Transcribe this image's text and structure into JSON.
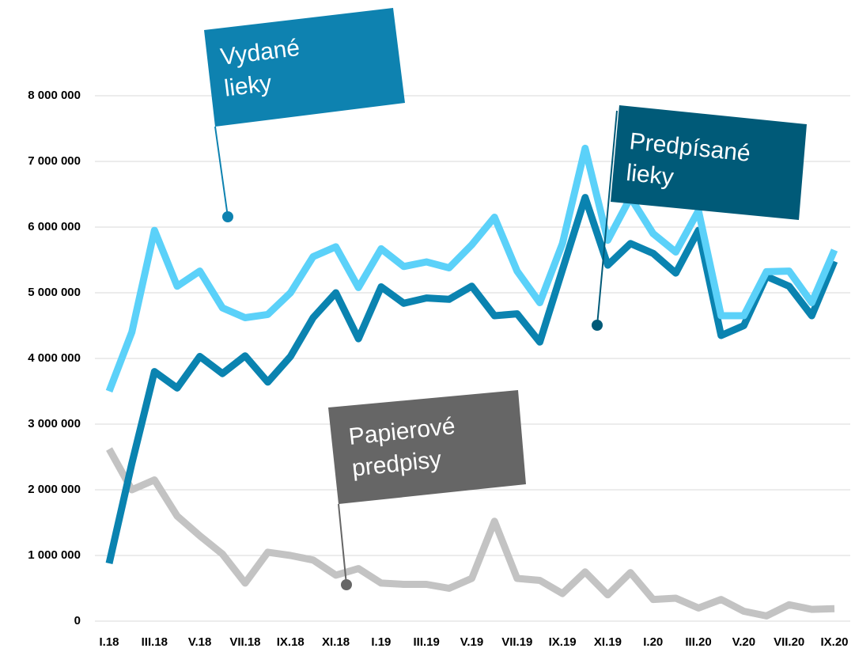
{
  "chart_data": {
    "type": "line",
    "categories": [
      "I.18",
      null,
      "III.18",
      null,
      "V.18",
      null,
      "VII.18",
      null,
      "IX.18",
      null,
      "XI.18",
      null,
      "I.19",
      null,
      "III.19",
      null,
      "V.19",
      null,
      "VII.19",
      null,
      "IX.19",
      null,
      "XI.19",
      null,
      "I.20",
      null,
      "III.20",
      null,
      "V.20",
      null,
      "VII.20",
      null,
      "IX.20"
    ],
    "series": [
      {
        "name": "Vydané lieky",
        "color": "#5bd1f9",
        "values": [
          3500000,
          4400000,
          5950000,
          5100000,
          5330000,
          4770000,
          4620000,
          4670000,
          5000000,
          5550000,
          5700000,
          5080000,
          5670000,
          5400000,
          5470000,
          5380000,
          5730000,
          6150000,
          5330000,
          4850000,
          5750000,
          7200000,
          5800000,
          6450000,
          5900000,
          5620000,
          6250000,
          4650000,
          4650000,
          5320000,
          5330000,
          4850000,
          5650000
        ]
      },
      {
        "name": "Predpísané lieky",
        "color": "#0a83b0",
        "values": [
          880000,
          2400000,
          3800000,
          3550000,
          4030000,
          3770000,
          4040000,
          3640000,
          4030000,
          4620000,
          5000000,
          4300000,
          5090000,
          4840000,
          4920000,
          4900000,
          5100000,
          4650000,
          4680000,
          4250000,
          5350000,
          6450000,
          5420000,
          5750000,
          5600000,
          5300000,
          5950000,
          4350000,
          4500000,
          5250000,
          5100000,
          4650000,
          5480000
        ]
      },
      {
        "name": "Papierové predpisy",
        "color": "#c3c3c3",
        "values": [
          2620000,
          2000000,
          2150000,
          1600000,
          1300000,
          1020000,
          580000,
          1050000,
          1000000,
          930000,
          700000,
          800000,
          580000,
          560000,
          560000,
          500000,
          650000,
          1520000,
          650000,
          620000,
          420000,
          750000,
          400000,
          740000,
          330000,
          350000,
          200000,
          330000,
          150000,
          80000,
          250000,
          180000,
          190000
        ]
      }
    ],
    "annotations": [
      {
        "lines": [
          "Vydané",
          "lieky"
        ],
        "color": "#0e82b0"
      },
      {
        "lines": [
          "Predpísané",
          "lieky"
        ],
        "color": "#005a78"
      },
      {
        "lines": [
          "Papierové",
          "predpisy"
        ],
        "color": "#666666"
      }
    ],
    "ylim": [
      0,
      8000000
    ],
    "yticks": [
      0,
      {
        "value": 1000000,
        "label": "1 000 000"
      },
      {
        "value": 2000000,
        "label": "2 000 000"
      },
      {
        "value": 3000000,
        "label": "3 000 000"
      },
      {
        "value": 4000000,
        "label": "4 000 000"
      },
      {
        "value": 5000000,
        "label": "5 000 000"
      },
      {
        "value": 6000000,
        "label": "6 000 000"
      },
      {
        "value": 7000000,
        "label": "7 000 000"
      },
      {
        "value": 8000000,
        "label": "8 000 000"
      }
    ],
    "grid": true
  }
}
